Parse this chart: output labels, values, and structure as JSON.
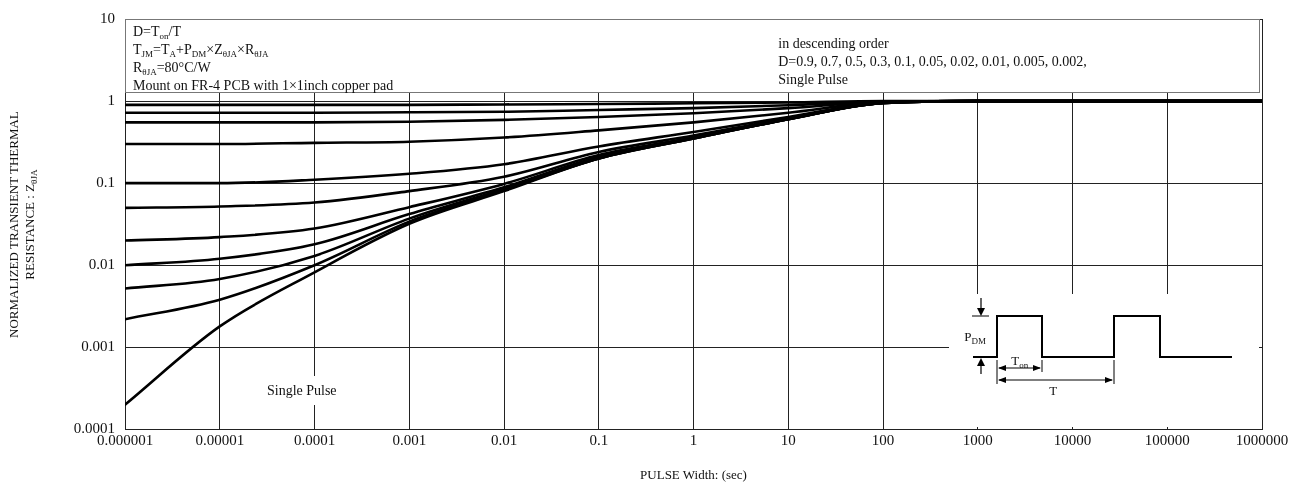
{
  "chart_data": {
    "type": "line",
    "xlabel": "PULSE Width: (sec)",
    "ylabel": "NORMALIZED TRANSIENT THERMAL RESISTANCE : Z$_{θJA}$",
    "x": [
      1e-06,
      1e-05,
      0.0001,
      0.001,
      0.01,
      0.1,
      1,
      10,
      100,
      1000,
      10000,
      100000,
      1000000
    ],
    "series": [
      {
        "color": "#000000",
        "values": [
          0.9,
          0.9,
          0.9,
          0.9,
          0.91,
          0.92,
          0.94,
          0.96,
          1,
          1,
          1,
          1,
          1
        ]
      },
      {
        "color": "#000000",
        "values": [
          0.72,
          0.72,
          0.72,
          0.73,
          0.74,
          0.78,
          0.82,
          0.89,
          0.99,
          1,
          1,
          1,
          1
        ]
      },
      {
        "color": "#000000",
        "values": [
          0.55,
          0.55,
          0.55,
          0.56,
          0.59,
          0.64,
          0.71,
          0.82,
          0.98,
          1,
          1,
          1,
          1
        ]
      },
      {
        "color": "#000000",
        "values": [
          0.3,
          0.3,
          0.31,
          0.32,
          0.36,
          0.44,
          0.55,
          0.72,
          0.97,
          1,
          1,
          1,
          1
        ]
      },
      {
        "color": "#000000",
        "values": [
          0.1,
          0.1,
          0.11,
          0.13,
          0.17,
          0.28,
          0.42,
          0.64,
          0.96,
          1,
          1,
          1,
          1
        ]
      },
      {
        "color": "#000000",
        "values": [
          0.05,
          0.052,
          0.058,
          0.08,
          0.12,
          0.24,
          0.38,
          0.62,
          0.95,
          1,
          1,
          1,
          1
        ]
      },
      {
        "color": "#000000",
        "values": [
          0.02,
          0.022,
          0.028,
          0.051,
          0.098,
          0.22,
          0.36,
          0.61,
          0.95,
          1,
          1,
          1,
          1
        ]
      },
      {
        "color": "#000000",
        "values": [
          0.01,
          0.012,
          0.018,
          0.042,
          0.089,
          0.21,
          0.36,
          0.6,
          0.95,
          1,
          1,
          1,
          1
        ]
      },
      {
        "color": "#000000",
        "values": [
          0.0052,
          0.0068,
          0.013,
          0.037,
          0.085,
          0.2,
          0.35,
          0.6,
          0.95,
          1,
          1,
          1,
          1
        ]
      },
      {
        "color": "#000000",
        "values": [
          0.0022,
          0.0038,
          0.01,
          0.034,
          0.082,
          0.2,
          0.35,
          0.6,
          0.95,
          1,
          1,
          1,
          1
        ]
      },
      {
        "color": "#000000",
        "values": [
          0.0002,
          0.0018,
          0.0082,
          0.032,
          0.08,
          0.2,
          0.35,
          0.6,
          0.95,
          1,
          1,
          1,
          1
        ]
      }
    ],
    "xlim": [
      1e-06,
      1000000
    ],
    "xticks": [
      {
        "value": 1e-06,
        "label": "0.000001"
      },
      {
        "value": 1e-05,
        "label": "0.00001"
      },
      0.0001,
      0.001,
      0.01,
      0.1,
      1,
      10,
      100,
      1000,
      10000,
      100000,
      1000000
    ],
    "ylim": [
      0.0001,
      10
    ],
    "yticks": [
      0.0001,
      0.001,
      0.01,
      0.1,
      1,
      10
    ],
    "log": "xy",
    "grid": true,
    "legend": false,
    "marker": "none",
    "line_style": "solid",
    "annotations": [
      "D=T$_{on}$/T",
      "T$_{JM}$=T$_{A}$+P$_{DM}$×Z$_{θJA}$×R$_{θJA}$",
      "R$_{θJA}$=80°C/W",
      "Mount on FR-4 PCB with 1×1inch copper pad",
      "in descending order",
      "D=0.9, 0.7,  0.5, 0.3, 0.1, 0.05, 0.02, 0.01, 0.005, 0.002,",
      "Single Pulse",
      "Single Pulse",
      "P$_{DM}$",
      "T$_{on}$",
      "T"
    ]
  }
}
